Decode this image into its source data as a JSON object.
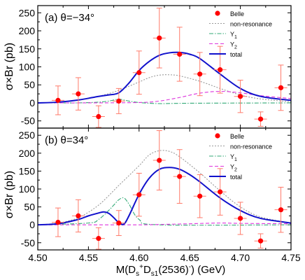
{
  "figure": {
    "xlabel_main": "M(D",
    "xlabel_sup1": "s",
    "xlabel_sup1b": "+",
    "xlabel_mid": "D",
    "xlabel_sub2": "s1",
    "xlabel_rest": "(2536)",
    "xlabel_sup2": "-",
    "xlabel_unit": ")  (GeV)",
    "ylabel": "σ×Br (pb)"
  },
  "colors": {
    "belle": "#ff0000",
    "error_bar": "#ff7a6a",
    "nonres": "#999999",
    "y1": "#33aa77",
    "y2": "#dd33dd",
    "total": "#1111cc"
  },
  "chart_data": [
    {
      "type": "line",
      "panel_label": "(a) θ=−34°",
      "xlim": [
        4.5,
        4.75
      ],
      "ylim": [
        -70,
        270
      ],
      "xticks": [
        4.5,
        4.55,
        4.6,
        4.65,
        4.7,
        4.75
      ],
      "xtick_labels": [
        "4.50",
        "4.55",
        "4.60",
        "4.65",
        "4.70",
        "4.75"
      ],
      "yticks": [
        -50,
        0,
        50,
        100,
        150,
        200,
        250
      ],
      "legend": [
        "Belle",
        "non-resonance",
        "Y1",
        "Y2",
        "total"
      ],
      "legend_position": "top-right",
      "belle": [
        {
          "x": 4.52,
          "y": 7,
          "err": 40
        },
        {
          "x": 4.54,
          "y": 25,
          "err": 45
        },
        {
          "x": 4.56,
          "y": -38,
          "err": 30
        },
        {
          "x": 4.58,
          "y": 5,
          "err": 35
        },
        {
          "x": 4.6,
          "y": 84,
          "err": 60
        },
        {
          "x": 4.62,
          "y": 180,
          "err": 83
        },
        {
          "x": 4.64,
          "y": 135,
          "err": 75
        },
        {
          "x": 4.66,
          "y": 80,
          "err": 60
        },
        {
          "x": 4.68,
          "y": 92,
          "err": 65
        },
        {
          "x": 4.7,
          "y": 18,
          "err": 45
        },
        {
          "x": 4.72,
          "y": -45,
          "err": 20
        },
        {
          "x": 4.74,
          "y": 42,
          "err": 63
        }
      ],
      "series": [
        {
          "name": "non-resonance",
          "key": "nonres",
          "x": [
            4.5,
            4.52,
            4.54,
            4.56,
            4.58,
            4.6,
            4.61,
            4.62,
            4.63,
            4.64,
            4.66,
            4.68,
            4.7,
            4.72,
            4.75
          ],
          "values": [
            0,
            2,
            8,
            18,
            35,
            58,
            70,
            77,
            78,
            75,
            60,
            40,
            22,
            11,
            3
          ]
        },
        {
          "name": "Y1",
          "key": "y1",
          "x": [
            4.5,
            4.52,
            4.54,
            4.56,
            4.57,
            4.58,
            4.59,
            4.6,
            4.62,
            4.65,
            4.75
          ],
          "values": [
            0,
            0,
            0,
            2,
            5,
            10,
            5,
            1,
            -2,
            -1,
            0
          ]
        },
        {
          "name": "Y2",
          "key": "y2",
          "x": [
            4.5,
            4.55,
            4.6,
            4.62,
            4.64,
            4.66,
            4.68,
            4.7,
            4.72,
            4.75
          ],
          "values": [
            0,
            0,
            1,
            5,
            15,
            27,
            32,
            28,
            20,
            12
          ]
        },
        {
          "name": "total",
          "key": "total",
          "x": [
            4.5,
            4.52,
            4.54,
            4.56,
            4.57,
            4.58,
            4.59,
            4.6,
            4.61,
            4.62,
            4.63,
            4.64,
            4.65,
            4.66,
            4.68,
            4.7,
            4.72,
            4.75
          ],
          "values": [
            0,
            2,
            8,
            18,
            22,
            28,
            55,
            90,
            115,
            132,
            139,
            140,
            135,
            123,
            80,
            40,
            18,
            7
          ]
        }
      ]
    },
    {
      "type": "line",
      "panel_label": "(b) θ=34°",
      "xlim": [
        4.5,
        4.75
      ],
      "ylim": [
        -70,
        270
      ],
      "xticks": [
        4.5,
        4.55,
        4.6,
        4.65,
        4.7,
        4.75
      ],
      "xtick_labels": [
        "4.50",
        "4.55",
        "4.60",
        "4.65",
        "4.70",
        "4.75"
      ],
      "yticks": [
        -50,
        0,
        50,
        100,
        150,
        200,
        250
      ],
      "legend": [
        "Belle",
        "non-resonance",
        "Y1",
        "Y2",
        "total"
      ],
      "legend_position": "top-right",
      "belle": [
        {
          "x": 4.52,
          "y": 7,
          "err": 40
        },
        {
          "x": 4.54,
          "y": 25,
          "err": 45
        },
        {
          "x": 4.56,
          "y": -38,
          "err": 30
        },
        {
          "x": 4.58,
          "y": 5,
          "err": 35
        },
        {
          "x": 4.6,
          "y": 84,
          "err": 60
        },
        {
          "x": 4.62,
          "y": 180,
          "err": 83
        },
        {
          "x": 4.64,
          "y": 135,
          "err": 75
        },
        {
          "x": 4.66,
          "y": 80,
          "err": 60
        },
        {
          "x": 4.68,
          "y": 92,
          "err": 65
        },
        {
          "x": 4.7,
          "y": 18,
          "err": 45
        },
        {
          "x": 4.72,
          "y": -45,
          "err": 20
        },
        {
          "x": 4.74,
          "y": 42,
          "err": 63
        }
      ],
      "series": [
        {
          "name": "non-resonance",
          "key": "nonres",
          "x": [
            4.5,
            4.52,
            4.54,
            4.56,
            4.58,
            4.6,
            4.61,
            4.62,
            4.63,
            4.64,
            4.66,
            4.68,
            4.7,
            4.72,
            4.75
          ],
          "values": [
            0,
            5,
            20,
            55,
            110,
            165,
            195,
            207,
            205,
            190,
            145,
            95,
            50,
            22,
            5
          ]
        },
        {
          "name": "Y1",
          "key": "y1",
          "x": [
            4.5,
            4.55,
            4.56,
            4.57,
            4.575,
            4.58,
            4.585,
            4.59,
            4.6,
            4.62,
            4.75
          ],
          "values": [
            0,
            5,
            15,
            40,
            55,
            70,
            75,
            58,
            15,
            0,
            0
          ]
        },
        {
          "name": "Y2",
          "key": "y2",
          "x": [
            4.5,
            4.6,
            4.62,
            4.65,
            4.68,
            4.7,
            4.75
          ],
          "values": [
            0,
            0,
            1,
            3,
            5,
            4,
            3
          ]
        },
        {
          "name": "total",
          "key": "total",
          "x": [
            4.5,
            4.52,
            4.54,
            4.55,
            4.56,
            4.565,
            4.57,
            4.575,
            4.58,
            4.585,
            4.59,
            4.6,
            4.61,
            4.62,
            4.63,
            4.64,
            4.65,
            4.66,
            4.68,
            4.7,
            4.72,
            4.75
          ],
          "values": [
            0,
            3,
            15,
            25,
            33,
            36,
            32,
            20,
            6,
            2,
            25,
            85,
            130,
            155,
            160,
            155,
            140,
            120,
            75,
            40,
            18,
            5
          ]
        }
      ]
    }
  ]
}
